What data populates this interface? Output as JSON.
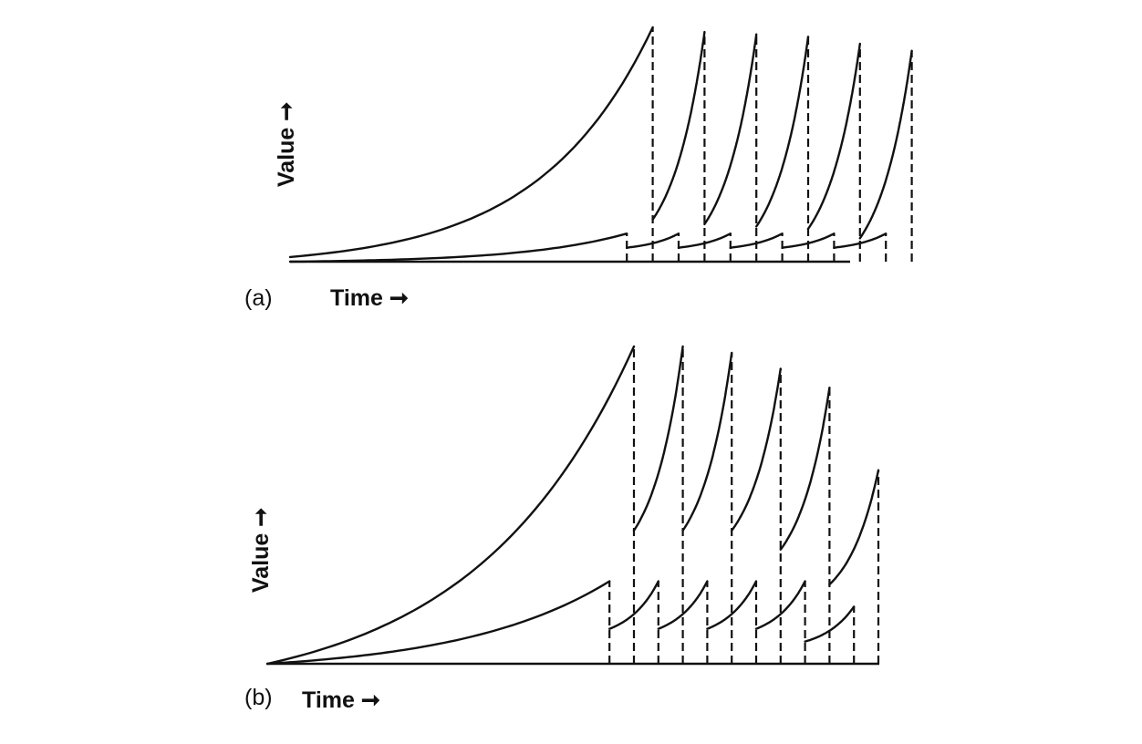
{
  "chart_data": [
    {
      "type": "line",
      "panel_label": "(a)",
      "xlabel": "Time",
      "ylabel": "Value",
      "ylim": [
        0,
        1
      ],
      "dashed_reset_times": [
        0.52,
        0.56,
        0.6,
        0.64,
        0.68,
        0.72,
        0.76,
        0.8,
        0.84,
        0.88,
        0.92,
        0.96
      ],
      "series": [
        {
          "segments": [
            {
              "x": [
                0,
                0.52
              ],
              "y": [
                0.0,
                0.12
              ]
            },
            {
              "x": [
                0.52,
                0.6
              ],
              "y": [
                0.06,
                0.12
              ]
            },
            {
              "x": [
                0.6,
                0.68
              ],
              "y": [
                0.06,
                0.12
              ]
            },
            {
              "x": [
                0.68,
                0.76
              ],
              "y": [
                0.06,
                0.12
              ]
            },
            {
              "x": [
                0.76,
                0.84
              ],
              "y": [
                0.06,
                0.12
              ]
            },
            {
              "x": [
                0.84,
                0.92
              ],
              "y": [
                0.06,
                0.12
              ]
            }
          ]
        },
        {
          "segments": [
            {
              "x": [
                0,
                0.56
              ],
              "y": [
                0.02,
                1.0
              ]
            },
            {
              "x": [
                0.56,
                0.64
              ],
              "y": [
                0.18,
                0.98
              ]
            },
            {
              "x": [
                0.64,
                0.72
              ],
              "y": [
                0.16,
                0.97
              ]
            },
            {
              "x": [
                0.72,
                0.8
              ],
              "y": [
                0.15,
                0.96
              ]
            },
            {
              "x": [
                0.8,
                0.88
              ],
              "y": [
                0.14,
                0.93
              ]
            },
            {
              "x": [
                0.88,
                0.96
              ],
              "y": [
                0.1,
                0.9
              ]
            }
          ]
        }
      ]
    },
    {
      "type": "line",
      "panel_label": "(b)",
      "xlabel": "Time",
      "ylabel": "Value",
      "ylim": [
        0,
        1
      ],
      "dashed_reset_times": [
        0.56,
        0.6,
        0.64,
        0.68,
        0.72,
        0.76,
        0.8,
        0.84,
        0.88,
        0.92,
        0.96,
        1.0
      ],
      "series": [
        {
          "segments": [
            {
              "x": [
                0,
                0.56
              ],
              "y": [
                0.0,
                0.26
              ]
            },
            {
              "x": [
                0.56,
                0.64
              ],
              "y": [
                0.11,
                0.26
              ]
            },
            {
              "x": [
                0.64,
                0.72
              ],
              "y": [
                0.11,
                0.26
              ]
            },
            {
              "x": [
                0.72,
                0.8
              ],
              "y": [
                0.11,
                0.26
              ]
            },
            {
              "x": [
                0.8,
                0.88
              ],
              "y": [
                0.11,
                0.26
              ]
            },
            {
              "x": [
                0.88,
                0.96
              ],
              "y": [
                0.07,
                0.18
              ]
            }
          ]
        },
        {
          "segments": [
            {
              "x": [
                0,
                0.6
              ],
              "y": [
                0.0,
                1.0
              ]
            },
            {
              "x": [
                0.6,
                0.68
              ],
              "y": [
                0.42,
                1.0
              ]
            },
            {
              "x": [
                0.68,
                0.76
              ],
              "y": [
                0.42,
                0.98
              ]
            },
            {
              "x": [
                0.76,
                0.84
              ],
              "y": [
                0.42,
                0.93
              ]
            },
            {
              "x": [
                0.84,
                0.92
              ],
              "y": [
                0.36,
                0.87
              ]
            },
            {
              "x": [
                0.92,
                1.0
              ],
              "y": [
                0.25,
                0.61
              ]
            }
          ]
        }
      ]
    }
  ]
}
